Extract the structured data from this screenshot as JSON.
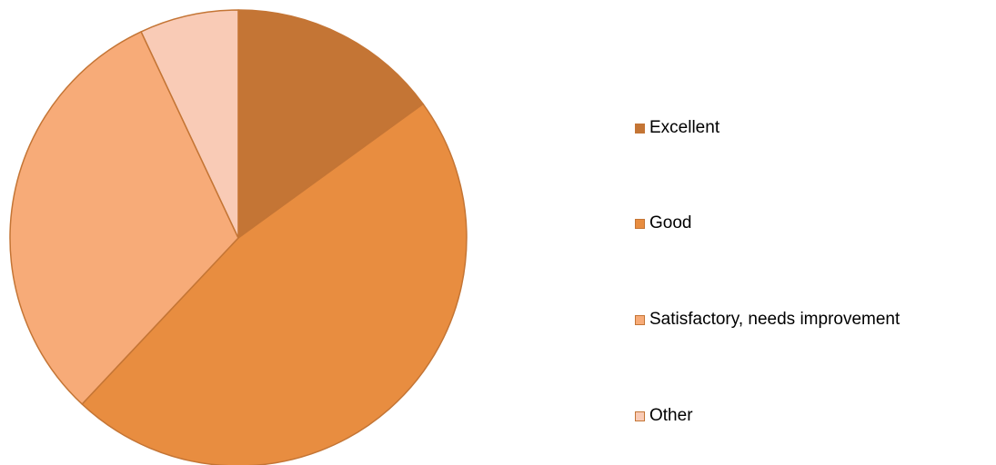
{
  "chart_data": {
    "type": "pie",
    "categories": [
      "Excellent",
      "Good",
      "Satisfactory, needs improvement",
      "Other"
    ],
    "values": [
      15,
      47,
      31,
      7
    ],
    "title": "",
    "legend_position": "right",
    "colors": [
      "#c47535",
      "#e88d40",
      "#f7ab78",
      "#f9cbb6"
    ],
    "stroke_color": "#c47535",
    "start_angle_deg": 0,
    "direction": "clockwise"
  }
}
